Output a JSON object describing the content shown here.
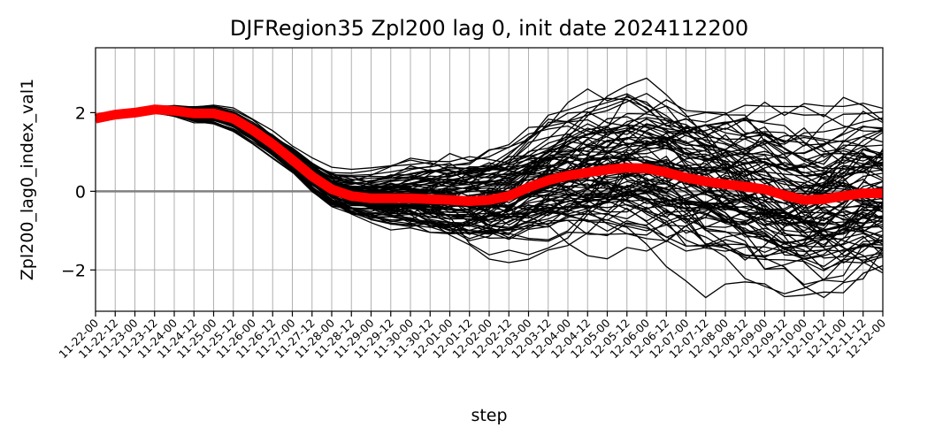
{
  "chart_data": {
    "type": "line",
    "title": "DJFRegion35 Zpl200 lag 0, init date 2024112200",
    "xlabel": "step",
    "ylabel": "Zpl200_lag0_index_val1",
    "categories": [
      "11-22-00",
      "11-22-12",
      "11-23-00",
      "11-23-12",
      "11-24-00",
      "11-24-12",
      "11-25-00",
      "11-25-12",
      "11-26-00",
      "11-26-12",
      "11-27-00",
      "11-27-12",
      "11-28-00",
      "11-28-12",
      "11-29-00",
      "11-29-12",
      "11-30-00",
      "11-30-12",
      "12-01-00",
      "12-01-12",
      "12-02-00",
      "12-02-12",
      "12-03-00",
      "12-03-12",
      "12-04-00",
      "12-04-12",
      "12-05-00",
      "12-05-12",
      "12-06-00",
      "12-06-12",
      "12-07-00",
      "12-07-12",
      "12-08-00",
      "12-08-12",
      "12-09-00",
      "12-09-12",
      "12-10-00",
      "12-10-12",
      "12-11-00",
      "12-11-12",
      "12-12-00"
    ],
    "ylim": [
      -3.05,
      3.65
    ],
    "yticks": [
      -2,
      0,
      2
    ],
    "yticklabels": [
      "−2",
      "0",
      "2"
    ],
    "grid": true,
    "reference_line": 0,
    "ensemble": {
      "members": 100,
      "color": "#000000",
      "mean_path": [
        1.85,
        1.95,
        2.0,
        2.08,
        2.05,
        1.98,
        1.98,
        1.85,
        1.55,
        1.2,
        0.8,
        0.38,
        0.05,
        -0.12,
        -0.18,
        -0.18,
        -0.18,
        -0.2,
        -0.22,
        -0.25,
        -0.22,
        -0.12,
        0.1,
        0.28,
        0.4,
        0.48,
        0.55,
        0.6,
        0.58,
        0.48,
        0.35,
        0.25,
        0.18,
        0.12,
        0.05,
        -0.1,
        -0.22,
        -0.2,
        -0.12,
        -0.05,
        -0.05
      ],
      "spread_path": [
        0.03,
        0.04,
        0.05,
        0.06,
        0.1,
        0.14,
        0.16,
        0.18,
        0.2,
        0.22,
        0.25,
        0.3,
        0.36,
        0.42,
        0.48,
        0.55,
        0.62,
        0.7,
        0.78,
        0.86,
        0.93,
        1.0,
        1.05,
        1.1,
        1.15,
        1.2,
        1.25,
        1.3,
        1.33,
        1.36,
        1.38,
        1.4,
        1.42,
        1.44,
        1.46,
        1.47,
        1.48,
        1.49,
        1.5,
        1.5,
        1.5
      ]
    },
    "series": [
      {
        "color": "#ff0000",
        "values": [
          1.85,
          1.95,
          2.0,
          2.08,
          2.05,
          1.98,
          1.98,
          1.85,
          1.55,
          1.2,
          0.8,
          0.38,
          0.05,
          -0.12,
          -0.18,
          -0.18,
          -0.18,
          -0.2,
          -0.22,
          -0.25,
          -0.22,
          -0.12,
          0.1,
          0.28,
          0.4,
          0.48,
          0.55,
          0.6,
          0.58,
          0.48,
          0.35,
          0.25,
          0.18,
          0.12,
          0.05,
          -0.1,
          -0.22,
          -0.2,
          -0.12,
          -0.05,
          -0.05
        ]
      }
    ]
  }
}
